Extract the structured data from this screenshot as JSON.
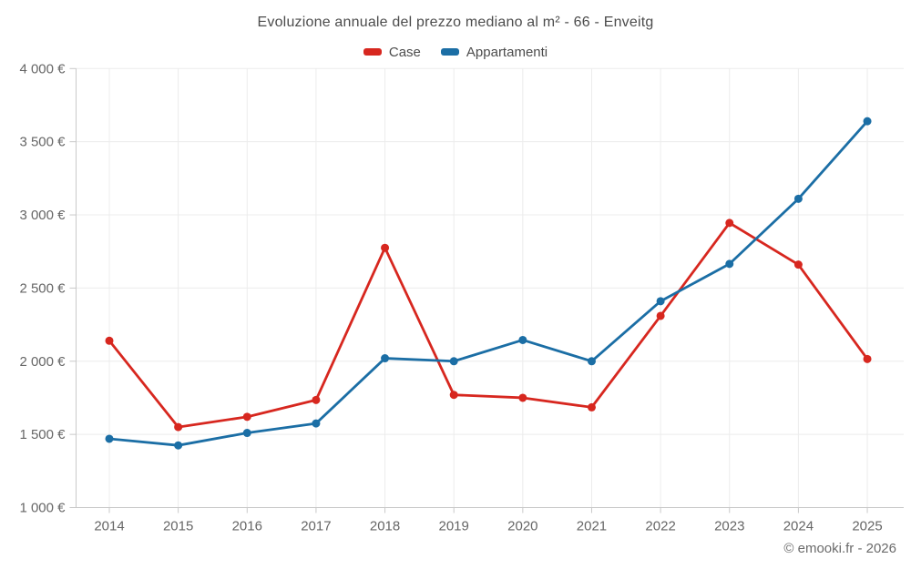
{
  "title": "Evoluzione annuale del prezzo mediano al m² - 66 - Enveitg",
  "footer": {
    "copyright": "© emooki.fr - 2026"
  },
  "colors": {
    "case_red": "#d7271f",
    "appartamenti_blue": "#1b6ea5",
    "gridline": "#ececec",
    "axis_line": "#c9c9c9",
    "tick_text": "#666666",
    "title_text": "#4c4c4c"
  },
  "chart_data": {
    "type": "line",
    "x": [
      2014,
      2015,
      2016,
      2017,
      2018,
      2019,
      2020,
      2021,
      2022,
      2023,
      2024,
      2025
    ],
    "series": [
      {
        "name": "Case",
        "color": "#d7271f",
        "values": [
          2140,
          1550,
          1620,
          1735,
          2775,
          1770,
          1750,
          1685,
          2310,
          2945,
          2660,
          2015
        ]
      },
      {
        "name": "Appartamenti",
        "color": "#1b6ea5",
        "values": [
          1470,
          1425,
          1510,
          1575,
          2020,
          2000,
          2145,
          2000,
          2410,
          2665,
          3110,
          3640
        ]
      }
    ],
    "title": "Evoluzione annuale del prezzo mediano al m² - 66 - Enveitg",
    "xlabel": "",
    "ylabel": "",
    "ylim": [
      1000,
      4000
    ],
    "ytick_step": 500,
    "yticklabels": [
      "1 000 €",
      "1 500 €",
      "2 000 €",
      "2 500 €",
      "3 000 €",
      "3 500 €",
      "4 000 €"
    ],
    "grid": true,
    "legend_position": "top"
  }
}
